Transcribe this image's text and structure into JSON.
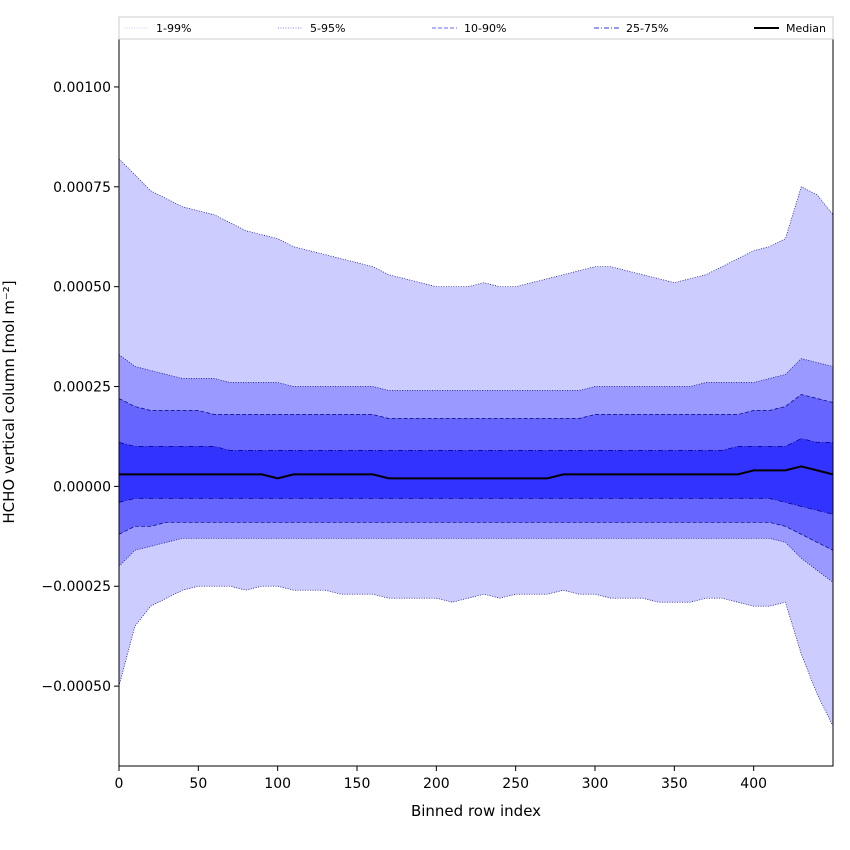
{
  "chart_data": {
    "type": "area",
    "title": "",
    "xlabel": "Binned row index",
    "ylabel": "HCHO vertical column [mol m⁻²]",
    "xlim": [
      0,
      450
    ],
    "ylim": [
      -0.0007,
      0.00112
    ],
    "x_ticks": [
      {
        "value": 0,
        "label": "0"
      },
      {
        "value": 50,
        "label": "50"
      },
      {
        "value": 100,
        "label": "100"
      },
      {
        "value": 150,
        "label": "150"
      },
      {
        "value": 200,
        "label": "200"
      },
      {
        "value": 250,
        "label": "250"
      },
      {
        "value": 300,
        "label": "300"
      },
      {
        "value": 350,
        "label": "350"
      },
      {
        "value": 400,
        "label": "400"
      }
    ],
    "y_ticks": [
      {
        "value": -0.0005,
        "label": "−0.00050"
      },
      {
        "value": -0.00025,
        "label": "−0.00025"
      },
      {
        "value": 0.0,
        "label": "0.00000"
      },
      {
        "value": 0.00025,
        "label": "0.00025"
      },
      {
        "value": 0.0005,
        "label": "0.00050"
      },
      {
        "value": 0.00075,
        "label": "0.00075"
      },
      {
        "value": 0.001,
        "label": "0.00100"
      }
    ],
    "legend": {
      "placement": "top",
      "entries": [
        {
          "label": "1-99%",
          "color": "#ccccff",
          "style": "dotted"
        },
        {
          "label": "5-95%",
          "color": "#8080ff",
          "style": "dotted"
        },
        {
          "label": "10-90%",
          "color": "#6666ff",
          "style": "dashed"
        },
        {
          "label": "25-75%",
          "color": "#3333dd",
          "style": "dashdot"
        },
        {
          "label": "Median",
          "color": "#000000",
          "style": "solid"
        }
      ]
    },
    "x": [
      0,
      10,
      20,
      30,
      40,
      50,
      60,
      70,
      80,
      90,
      100,
      110,
      120,
      130,
      140,
      150,
      160,
      170,
      180,
      190,
      200,
      210,
      220,
      230,
      240,
      250,
      260,
      270,
      280,
      290,
      300,
      310,
      320,
      330,
      340,
      350,
      360,
      370,
      380,
      390,
      400,
      410,
      420,
      430,
      440,
      450
    ],
    "series": [
      {
        "name": "1-99%",
        "color": "#ccccff",
        "upper": [
          0.00082,
          0.00078,
          0.00074,
          0.00072,
          0.0007,
          0.00069,
          0.00068,
          0.00066,
          0.00064,
          0.00063,
          0.00062,
          0.0006,
          0.00059,
          0.00058,
          0.00057,
          0.00056,
          0.00055,
          0.00053,
          0.00052,
          0.00051,
          0.0005,
          0.0005,
          0.0005,
          0.00051,
          0.0005,
          0.0005,
          0.00051,
          0.00052,
          0.00053,
          0.00054,
          0.00055,
          0.00055,
          0.00054,
          0.00053,
          0.00052,
          0.00051,
          0.00052,
          0.00053,
          0.00055,
          0.00057,
          0.00059,
          0.0006,
          0.00062,
          0.00075,
          0.00073,
          0.00068
        ],
        "lower": [
          -0.0005,
          -0.00035,
          -0.0003,
          -0.00028,
          -0.00026,
          -0.00025,
          -0.00025,
          -0.00025,
          -0.00026,
          -0.00025,
          -0.00025,
          -0.00026,
          -0.00026,
          -0.00026,
          -0.00027,
          -0.00027,
          -0.00027,
          -0.00028,
          -0.00028,
          -0.00028,
          -0.00028,
          -0.00029,
          -0.00028,
          -0.00027,
          -0.00028,
          -0.00027,
          -0.00027,
          -0.00027,
          -0.00026,
          -0.00027,
          -0.00027,
          -0.00028,
          -0.00028,
          -0.00028,
          -0.00029,
          -0.00029,
          -0.00029,
          -0.00028,
          -0.00028,
          -0.00029,
          -0.0003,
          -0.0003,
          -0.00029,
          -0.00042,
          -0.00052,
          -0.0006
        ]
      },
      {
        "name": "5-95%",
        "color": "#8080ff",
        "upper": [
          0.00033,
          0.0003,
          0.00029,
          0.00028,
          0.00027,
          0.00027,
          0.00027,
          0.00026,
          0.00026,
          0.00026,
          0.00026,
          0.00025,
          0.00025,
          0.00025,
          0.00025,
          0.00025,
          0.00025,
          0.00024,
          0.00024,
          0.00024,
          0.00024,
          0.00024,
          0.00024,
          0.00024,
          0.00024,
          0.00024,
          0.00024,
          0.00024,
          0.00024,
          0.00024,
          0.00025,
          0.00025,
          0.00025,
          0.00025,
          0.00025,
          0.00025,
          0.00025,
          0.00026,
          0.00026,
          0.00026,
          0.00026,
          0.00027,
          0.00028,
          0.00032,
          0.00031,
          0.0003
        ],
        "lower": [
          -0.0002,
          -0.00016,
          -0.00015,
          -0.00014,
          -0.00013,
          -0.00013,
          -0.00013,
          -0.00013,
          -0.00013,
          -0.00013,
          -0.00013,
          -0.00013,
          -0.00013,
          -0.00013,
          -0.00013,
          -0.00013,
          -0.00013,
          -0.00013,
          -0.00013,
          -0.00013,
          -0.00013,
          -0.00013,
          -0.00013,
          -0.00013,
          -0.00013,
          -0.00013,
          -0.00013,
          -0.00013,
          -0.00013,
          -0.00013,
          -0.00013,
          -0.00013,
          -0.00013,
          -0.00013,
          -0.00013,
          -0.00013,
          -0.00013,
          -0.00013,
          -0.00013,
          -0.00013,
          -0.00013,
          -0.00013,
          -0.00014,
          -0.00018,
          -0.00021,
          -0.00024
        ]
      },
      {
        "name": "10-90%",
        "color": "#6666ff",
        "upper": [
          0.00022,
          0.0002,
          0.00019,
          0.00019,
          0.00019,
          0.00019,
          0.00018,
          0.00018,
          0.00018,
          0.00018,
          0.00018,
          0.00018,
          0.00018,
          0.00018,
          0.00018,
          0.00018,
          0.00018,
          0.00017,
          0.00017,
          0.00017,
          0.00017,
          0.00017,
          0.00017,
          0.00017,
          0.00017,
          0.00017,
          0.00017,
          0.00017,
          0.00017,
          0.00017,
          0.00018,
          0.00018,
          0.00018,
          0.00018,
          0.00018,
          0.00018,
          0.00018,
          0.00018,
          0.00018,
          0.00018,
          0.00019,
          0.00019,
          0.0002,
          0.00023,
          0.00022,
          0.00021
        ],
        "lower": [
          -0.00012,
          -0.0001,
          -0.0001,
          -9e-05,
          -9e-05,
          -9e-05,
          -9e-05,
          -9e-05,
          -9e-05,
          -9e-05,
          -9e-05,
          -9e-05,
          -9e-05,
          -9e-05,
          -9e-05,
          -9e-05,
          -9e-05,
          -9e-05,
          -9e-05,
          -9e-05,
          -9e-05,
          -9e-05,
          -9e-05,
          -9e-05,
          -9e-05,
          -9e-05,
          -9e-05,
          -9e-05,
          -9e-05,
          -9e-05,
          -9e-05,
          -9e-05,
          -9e-05,
          -9e-05,
          -9e-05,
          -9e-05,
          -9e-05,
          -9e-05,
          -9e-05,
          -9e-05,
          -9e-05,
          -9e-05,
          -0.0001,
          -0.00012,
          -0.00014,
          -0.00016
        ]
      },
      {
        "name": "25-75%",
        "color": "#3333dd",
        "upper": [
          0.00011,
          0.0001,
          0.0001,
          0.0001,
          0.0001,
          0.0001,
          0.0001,
          9e-05,
          9e-05,
          9e-05,
          9e-05,
          9e-05,
          9e-05,
          9e-05,
          9e-05,
          9e-05,
          9e-05,
          9e-05,
          9e-05,
          9e-05,
          9e-05,
          9e-05,
          9e-05,
          9e-05,
          9e-05,
          9e-05,
          9e-05,
          9e-05,
          9e-05,
          9e-05,
          9e-05,
          9e-05,
          9e-05,
          9e-05,
          9e-05,
          9e-05,
          9e-05,
          9e-05,
          9e-05,
          0.0001,
          0.0001,
          0.0001,
          0.0001,
          0.00012,
          0.00011,
          0.00011
        ],
        "lower": [
          -4e-05,
          -3e-05,
          -3e-05,
          -3e-05,
          -3e-05,
          -3e-05,
          -3e-05,
          -3e-05,
          -3e-05,
          -3e-05,
          -3e-05,
          -3e-05,
          -3e-05,
          -3e-05,
          -3e-05,
          -3e-05,
          -3e-05,
          -3e-05,
          -3e-05,
          -3e-05,
          -3e-05,
          -3e-05,
          -3e-05,
          -3e-05,
          -3e-05,
          -3e-05,
          -3e-05,
          -3e-05,
          -3e-05,
          -3e-05,
          -3e-05,
          -3e-05,
          -3e-05,
          -3e-05,
          -3e-05,
          -3e-05,
          -3e-05,
          -3e-05,
          -3e-05,
          -3e-05,
          -3e-05,
          -3e-05,
          -4e-05,
          -5e-05,
          -6e-05,
          -7e-05
        ]
      },
      {
        "name": "Median",
        "color": "#000000",
        "values": [
          3e-05,
          3e-05,
          3e-05,
          3e-05,
          3e-05,
          3e-05,
          3e-05,
          3e-05,
          3e-05,
          3e-05,
          2e-05,
          3e-05,
          3e-05,
          3e-05,
          3e-05,
          3e-05,
          3e-05,
          2e-05,
          2e-05,
          2e-05,
          2e-05,
          2e-05,
          2e-05,
          2e-05,
          2e-05,
          2e-05,
          2e-05,
          2e-05,
          3e-05,
          3e-05,
          3e-05,
          3e-05,
          3e-05,
          3e-05,
          3e-05,
          3e-05,
          3e-05,
          3e-05,
          3e-05,
          3e-05,
          4e-05,
          4e-05,
          4e-05,
          5e-05,
          4e-05,
          3e-05
        ]
      }
    ]
  }
}
